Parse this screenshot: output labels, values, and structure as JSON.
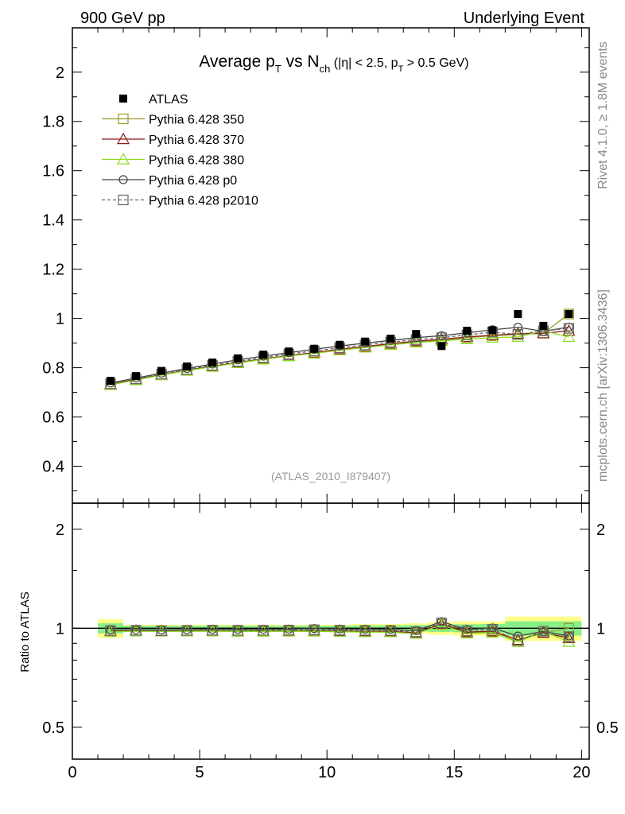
{
  "header": {
    "left": "900 GeV pp",
    "right": "Underlying Event"
  },
  "side": {
    "rivet": "Rivet 4.1.0, ≥ 1.8M events",
    "mcplots": "mcplots.cern.ch [arXiv:1306.3436]"
  },
  "chart_data": {
    "type": "line",
    "title": {
      "main": "Average p",
      "main_sub": "T",
      "vs": " vs N",
      "vs_sub": "ch",
      "cut": " (|η| < 2.5, p",
      "cut_sub": "T",
      "cut_end": " > 0.5 GeV)"
    },
    "analysis_id": "(ATLAS_2010_I879407)",
    "ratio_ylabel": "Ratio to ATLAS",
    "xlim": [
      0,
      20.3
    ],
    "ylim": [
      0.25,
      2.18
    ],
    "ratio_ylim": [
      0.4,
      2.4
    ],
    "x_ticks": [
      "0",
      "5",
      "10",
      "15",
      "20"
    ],
    "y_ticks": [
      "0.4",
      "0.6",
      "0.8",
      "1",
      "1.2",
      "1.4",
      "1.6",
      "1.8",
      "2"
    ],
    "ratio_y_ticks": [
      "0.5",
      "1",
      "2"
    ],
    "x": [
      1.5,
      2.5,
      3.5,
      4.5,
      5.5,
      6.5,
      7.5,
      8.5,
      9.5,
      10.5,
      11.5,
      12.5,
      13.5,
      14.5,
      15.5,
      16.5,
      17.5,
      18.5,
      19.5
    ],
    "data": {
      "name": "ATLAS",
      "values": [
        0.747,
        0.766,
        0.787,
        0.805,
        0.821,
        0.838,
        0.853,
        0.866,
        0.877,
        0.893,
        0.906,
        0.918,
        0.937,
        0.888,
        0.95,
        0.952,
        1.018,
        0.97,
        1.018
      ]
    },
    "band_outer": [
      0.065,
      0.025,
      0.025,
      0.025,
      0.025,
      0.025,
      0.025,
      0.025,
      0.025,
      0.025,
      0.03,
      0.03,
      0.035,
      0.045,
      0.05,
      0.05,
      0.085,
      0.085,
      0.085
    ],
    "band_inner": [
      0.035,
      0.018,
      0.018,
      0.018,
      0.018,
      0.018,
      0.018,
      0.018,
      0.018,
      0.018,
      0.02,
      0.02,
      0.022,
      0.025,
      0.028,
      0.03,
      0.05,
      0.05,
      0.05
    ],
    "series": [
      {
        "name": "Pythia 6.428 350",
        "color": "#999a26",
        "marker": "square-open",
        "dash": false,
        "values": [
          0.731,
          0.751,
          0.771,
          0.789,
          0.805,
          0.82,
          0.835,
          0.848,
          0.859,
          0.873,
          0.884,
          0.896,
          0.905,
          0.912,
          0.922,
          0.93,
          0.935,
          0.94,
          1.018
        ]
      },
      {
        "name": "Pythia 6.428 370",
        "color": "#8c1a1a",
        "marker": "triangle-open",
        "dash": false,
        "values": [
          0.733,
          0.753,
          0.772,
          0.79,
          0.806,
          0.821,
          0.836,
          0.849,
          0.861,
          0.875,
          0.886,
          0.898,
          0.908,
          0.915,
          0.925,
          0.932,
          0.938,
          0.94,
          0.95
        ]
      },
      {
        "name": "Pythia 6.428 380",
        "color": "#8cdc1e",
        "marker": "triangle-open",
        "dash": false,
        "values": [
          0.73,
          0.75,
          0.77,
          0.788,
          0.804,
          0.819,
          0.834,
          0.847,
          0.858,
          0.871,
          0.882,
          0.893,
          0.902,
          0.909,
          0.916,
          0.922,
          0.925,
          0.95,
          0.925
        ]
      },
      {
        "name": "Pythia 6.428 p0",
        "color": "#444444",
        "marker": "circle-open",
        "dash": false,
        "values": [
          0.738,
          0.758,
          0.778,
          0.797,
          0.815,
          0.832,
          0.847,
          0.861,
          0.875,
          0.888,
          0.9,
          0.911,
          0.922,
          0.93,
          0.942,
          0.954,
          0.964,
          0.948,
          0.965
        ]
      },
      {
        "name": "Pythia 6.428 p2010",
        "color": "#666666",
        "marker": "square-open",
        "dash": true,
        "values": [
          0.735,
          0.755,
          0.774,
          0.793,
          0.81,
          0.826,
          0.841,
          0.855,
          0.868,
          0.881,
          0.893,
          0.904,
          0.914,
          0.922,
          0.933,
          0.945,
          0.935,
          0.95,
          0.96
        ]
      }
    ]
  }
}
